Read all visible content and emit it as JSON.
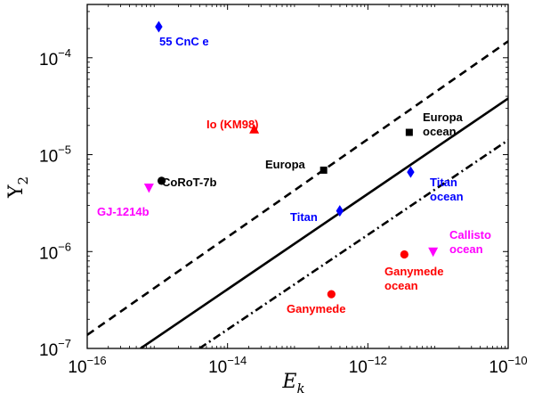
{
  "chart_data": {
    "type": "scatter",
    "title": "",
    "xlabel": "E",
    "xlabel_sub": "k",
    "ylabel": "Y",
    "ylabel_sub": "2",
    "xscale": "log",
    "yscale": "log",
    "xlim_exp": [
      -16,
      -10
    ],
    "ylim_exp": [
      -7,
      -3.45
    ],
    "x_ticks": [
      {
        "base": "10",
        "exp": "−16",
        "value_exp": -16
      },
      {
        "base": "10",
        "exp": "−14",
        "value_exp": -14
      },
      {
        "base": "10",
        "exp": "−12",
        "value_exp": -12
      },
      {
        "base": "10",
        "exp": "−10",
        "value_exp": -10
      }
    ],
    "y_ticks": [
      {
        "base": "10",
        "exp": "−7",
        "value_exp": -7
      },
      {
        "base": "10",
        "exp": "−6",
        "value_exp": -6
      },
      {
        "base": "10",
        "exp": "−5",
        "value_exp": -5
      },
      {
        "base": "10",
        "exp": "−4",
        "value_exp": -4
      }
    ],
    "lines": [
      {
        "name": "upper-bound",
        "style": "dashed",
        "points_exp": [
          [
            -16,
            -6.86
          ],
          [
            -10,
            -3.83
          ]
        ]
      },
      {
        "name": "central",
        "style": "solid",
        "points_exp": [
          [
            -15.24,
            -7.0
          ],
          [
            -10,
            -4.42
          ]
        ]
      },
      {
        "name": "lower-bound",
        "style": "dash-dot",
        "points_exp": [
          [
            -14.4,
            -7.0
          ],
          [
            -10,
            -4.85
          ]
        ]
      }
    ],
    "points": [
      {
        "label": "55 CnC e",
        "marker": "diamond",
        "color": "#0000ff",
        "x_exp": -14.98,
        "y_exp": -3.68
      },
      {
        "label": "Io (KM98)",
        "marker": "triangle-up",
        "color": "#ff0000",
        "x_exp": -13.62,
        "y_exp": -4.74
      },
      {
        "label": "Europa",
        "marker": "square",
        "color": "#000000",
        "x_exp": -12.63,
        "y_exp": -5.16
      },
      {
        "label": "Europa ocean",
        "marker": "square",
        "color": "#000000",
        "x_exp": -11.41,
        "y_exp": -4.77
      },
      {
        "label": "CoRoT-7b",
        "marker": "circle",
        "color": "#000000",
        "x_exp": -14.94,
        "y_exp": -5.27
      },
      {
        "label": "GJ-1214b",
        "marker": "triangle-down",
        "color": "#ff00ff",
        "x_exp": -15.12,
        "y_exp": -5.34
      },
      {
        "label": "Titan",
        "marker": "diamond",
        "color": "#0000ff",
        "x_exp": -12.4,
        "y_exp": -5.58
      },
      {
        "label": "Titan ocean",
        "marker": "diamond",
        "color": "#0000ff",
        "x_exp": -11.39,
        "y_exp": -5.18
      },
      {
        "label": "Callisto ocean",
        "marker": "triangle-down",
        "color": "#ff00ff",
        "x_exp": -11.07,
        "y_exp": -6.0
      },
      {
        "label": "Ganymede ocean",
        "marker": "circle",
        "color": "#ff0000",
        "x_exp": -11.48,
        "y_exp": -6.03
      },
      {
        "label": "Ganymede",
        "marker": "circle",
        "color": "#ff0000",
        "x_exp": -12.52,
        "y_exp": -6.44
      }
    ],
    "label_lines": {
      "55 CnC e": [
        "55 CnC e"
      ],
      "Io (KM98)": [
        "Io (KM98)"
      ],
      "Europa": [
        "Europa"
      ],
      "Europa ocean": [
        "Europa",
        "ocean"
      ],
      "CoRoT-7b": [
        "CoRoT-7b"
      ],
      "GJ-1214b": [
        "GJ-1214b"
      ],
      "Titan": [
        "Titan"
      ],
      "Titan ocean": [
        "Titan",
        "ocean"
      ],
      "Callisto ocean": [
        "Callisto",
        "ocean"
      ],
      "Ganymede ocean": [
        "Ganymede",
        "ocean"
      ],
      "Ganymede": [
        "Ganymede"
      ]
    },
    "grid": false,
    "legend": "none"
  }
}
